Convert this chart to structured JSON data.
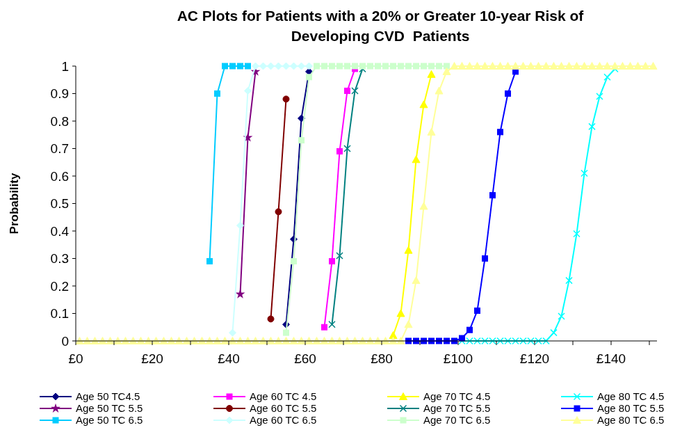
{
  "chart_data": {
    "type": "line",
    "title": "AC Plots for Patients with a 20% or Greater 10-year Risk of Developing CVD  Patients",
    "ylabel": "Probability",
    "x": [
      1,
      3,
      5,
      7,
      9,
      11,
      13,
      15,
      17,
      19,
      21,
      23,
      25,
      27,
      29,
      31,
      33,
      35,
      37,
      39,
      41,
      43,
      45,
      47,
      49,
      51,
      53,
      55,
      57,
      59,
      61,
      63,
      65,
      67,
      69,
      71,
      73,
      75,
      77,
      79,
      81,
      83,
      85,
      87,
      89,
      91,
      93,
      95,
      97,
      99,
      101,
      103,
      105,
      107,
      109,
      111,
      113,
      115,
      117,
      119,
      121,
      123,
      125,
      127,
      129,
      131,
      133,
      135,
      137,
      139,
      141,
      143,
      145,
      147,
      149,
      151
    ],
    "xlim": [
      0,
      152
    ],
    "xticks": [
      {
        "value": 0,
        "label": "£0"
      },
      {
        "value": 10,
        "label": null
      },
      {
        "value": 20,
        "label": "£20"
      },
      {
        "value": 30,
        "label": null
      },
      {
        "value": 40,
        "label": "£40"
      },
      {
        "value": 50,
        "label": null
      },
      {
        "value": 60,
        "label": "£60"
      },
      {
        "value": 70,
        "label": null
      },
      {
        "value": 80,
        "label": "£80"
      },
      {
        "value": 90,
        "label": null
      },
      {
        "value": 100,
        "label": "£100"
      },
      {
        "value": 110,
        "label": null
      },
      {
        "value": 120,
        "label": "£120"
      },
      {
        "value": 130,
        "label": null
      },
      {
        "value": 140,
        "label": "£140"
      },
      {
        "value": 150,
        "label": null
      }
    ],
    "ylim": [
      0,
      1
    ],
    "yticks": [
      0,
      0.1,
      0.2,
      0.3,
      0.4,
      0.5,
      0.6,
      0.7,
      0.8,
      0.9,
      1
    ],
    "grid": false,
    "legend": "bottom",
    "line_style": "solid",
    "series": [
      {
        "name": "Age 50 TC4.5",
        "color": "#000080",
        "marker": "diamond",
        "values": [
          null,
          null,
          null,
          null,
          null,
          null,
          null,
          null,
          null,
          null,
          null,
          null,
          null,
          null,
          null,
          null,
          null,
          null,
          null,
          null,
          null,
          null,
          null,
          null,
          null,
          null,
          null,
          0.06,
          0.37,
          0.81,
          0.98,
          null,
          null,
          null,
          null,
          null,
          null,
          null,
          null,
          null,
          null,
          null,
          null,
          null,
          null,
          null,
          null,
          null,
          null,
          null,
          null,
          null,
          null,
          null,
          null,
          null,
          null,
          null,
          null,
          null,
          null,
          null,
          null,
          null,
          null,
          null,
          null,
          null,
          null,
          null,
          null,
          null,
          null,
          null,
          null,
          null
        ]
      },
      {
        "name": "Age 50 TC 5.5",
        "color": "#800080",
        "marker": "star",
        "values": [
          null,
          null,
          null,
          null,
          null,
          null,
          null,
          null,
          null,
          null,
          null,
          null,
          null,
          null,
          null,
          null,
          null,
          null,
          null,
          null,
          null,
          0.17,
          0.74,
          0.98,
          null,
          null,
          null,
          null,
          null,
          null,
          null,
          null,
          null,
          null,
          null,
          null,
          null,
          null,
          null,
          null,
          null,
          null,
          null,
          null,
          null,
          null,
          null,
          null,
          null,
          null,
          null,
          null,
          null,
          null,
          null,
          null,
          null,
          null,
          null,
          null,
          null,
          null,
          null,
          null,
          null,
          null,
          null,
          null,
          null,
          null,
          null,
          null,
          null,
          null,
          null,
          null
        ]
      },
      {
        "name": "Age 50 TC 6.5",
        "color": "#00ccff",
        "marker": "square",
        "values": [
          null,
          null,
          null,
          null,
          null,
          null,
          null,
          null,
          null,
          null,
          null,
          null,
          null,
          null,
          null,
          null,
          null,
          0.29,
          0.9,
          1,
          1,
          1,
          1,
          null,
          null,
          null,
          null,
          null,
          null,
          null,
          null,
          null,
          null,
          null,
          null,
          null,
          null,
          null,
          null,
          null,
          null,
          null,
          null,
          null,
          null,
          null,
          null,
          null,
          null,
          null,
          null,
          null,
          null,
          null,
          null,
          null,
          null,
          null,
          null,
          null,
          null,
          null,
          null,
          null,
          null,
          null,
          null,
          null,
          null,
          null,
          null,
          null,
          null,
          null,
          null,
          null
        ]
      },
      {
        "name": "Age 60 TC 4.5",
        "color": "#ff00ff",
        "marker": "square",
        "values": [
          null,
          null,
          null,
          null,
          null,
          null,
          null,
          null,
          null,
          null,
          null,
          null,
          null,
          null,
          null,
          null,
          null,
          null,
          null,
          null,
          null,
          null,
          null,
          null,
          null,
          null,
          null,
          null,
          null,
          null,
          null,
          null,
          0.05,
          0.29,
          0.69,
          0.91,
          0.99,
          null,
          null,
          null,
          null,
          null,
          null,
          null,
          null,
          null,
          null,
          null,
          null,
          null,
          null,
          null,
          null,
          null,
          null,
          null,
          null,
          null,
          null,
          null,
          null,
          null,
          null,
          null,
          null,
          null,
          null,
          null,
          null,
          null,
          null,
          null,
          null,
          null,
          null,
          null
        ]
      },
      {
        "name": "Age 60 TC 5.5",
        "color": "#800000",
        "marker": "circle",
        "values": [
          null,
          null,
          null,
          null,
          null,
          null,
          null,
          null,
          null,
          null,
          null,
          null,
          null,
          null,
          null,
          null,
          null,
          null,
          null,
          null,
          null,
          null,
          null,
          null,
          null,
          0.08,
          0.47,
          0.88,
          null,
          null,
          null,
          null,
          null,
          null,
          null,
          null,
          null,
          null,
          null,
          null,
          null,
          null,
          null,
          null,
          null,
          null,
          null,
          null,
          null,
          null,
          null,
          null,
          null,
          null,
          null,
          null,
          null,
          null,
          null,
          null,
          null,
          null,
          null,
          null,
          null,
          null,
          null,
          null,
          null,
          null,
          null,
          null,
          null,
          null,
          null,
          null
        ]
      },
      {
        "name": "Age 60 TC 6.5",
        "color": "#ccffff",
        "marker": "diamond",
        "values": [
          null,
          null,
          null,
          null,
          null,
          null,
          null,
          null,
          null,
          null,
          null,
          null,
          null,
          null,
          null,
          null,
          null,
          null,
          null,
          null,
          0.03,
          0.42,
          0.91,
          1,
          1,
          1,
          1,
          1,
          1,
          1,
          1,
          null,
          null,
          null,
          null,
          null,
          null,
          null,
          null,
          null,
          null,
          null,
          null,
          null,
          null,
          null,
          null,
          null,
          null,
          null,
          null,
          null,
          null,
          null,
          null,
          null,
          null,
          null,
          null,
          null,
          null,
          null,
          null,
          null,
          null,
          null,
          null,
          null,
          null,
          null,
          null,
          null,
          null,
          null,
          null,
          null
        ]
      },
      {
        "name": "Age 70 TC 4.5",
        "color": "#ffff00",
        "marker": "triangle",
        "values": [
          null,
          null,
          null,
          null,
          null,
          null,
          null,
          null,
          null,
          null,
          null,
          null,
          null,
          null,
          null,
          null,
          null,
          null,
          null,
          null,
          null,
          null,
          null,
          null,
          null,
          null,
          null,
          null,
          null,
          null,
          null,
          null,
          null,
          null,
          null,
          null,
          null,
          null,
          null,
          null,
          null,
          0.02,
          0.1,
          0.33,
          0.66,
          0.86,
          0.97,
          null,
          null,
          null,
          null,
          null,
          null,
          null,
          null,
          null,
          null,
          null,
          null,
          null,
          null,
          null,
          null,
          null,
          null,
          null,
          null,
          null,
          null,
          null,
          null,
          null,
          null,
          null,
          null,
          null
        ]
      },
      {
        "name": "Age 70 TC 5.5",
        "color": "#008080",
        "marker": "cross",
        "values": [
          null,
          null,
          null,
          null,
          null,
          null,
          null,
          null,
          null,
          null,
          null,
          null,
          null,
          null,
          null,
          null,
          null,
          null,
          null,
          null,
          null,
          null,
          null,
          null,
          null,
          null,
          null,
          null,
          null,
          null,
          null,
          null,
          null,
          0.06,
          0.31,
          0.7,
          0.91,
          0.99,
          null,
          null,
          null,
          null,
          null,
          null,
          null,
          null,
          null,
          null,
          null,
          null,
          null,
          null,
          null,
          null,
          null,
          null,
          null,
          null,
          null,
          null,
          null,
          null,
          null,
          null,
          null,
          null,
          null,
          null,
          null,
          null,
          null,
          null,
          null,
          null,
          null,
          null
        ]
      },
      {
        "name": "Age 70 TC 6.5",
        "color": "#ccffcc",
        "marker": "square",
        "values": [
          null,
          null,
          null,
          null,
          null,
          null,
          null,
          null,
          null,
          null,
          null,
          null,
          null,
          null,
          null,
          null,
          null,
          null,
          null,
          null,
          null,
          null,
          null,
          null,
          null,
          null,
          null,
          0.03,
          0.29,
          0.73,
          0.96,
          1,
          1,
          1,
          1,
          1,
          1,
          1,
          1,
          1,
          1,
          1,
          1,
          1,
          1,
          1,
          1,
          1,
          1,
          null,
          null,
          null,
          null,
          null,
          null,
          null,
          null,
          null,
          null,
          null,
          null,
          null,
          null,
          null,
          null,
          null,
          null,
          null,
          null,
          null,
          null,
          null,
          null,
          null,
          null,
          null
        ]
      },
      {
        "name": "Age 80 TC 4.5",
        "color": "#00ffff",
        "marker": "cross",
        "values": [
          null,
          null,
          null,
          null,
          null,
          null,
          null,
          null,
          null,
          null,
          null,
          null,
          null,
          null,
          null,
          null,
          null,
          null,
          null,
          null,
          null,
          null,
          null,
          null,
          null,
          null,
          null,
          null,
          null,
          null,
          null,
          null,
          null,
          null,
          null,
          null,
          null,
          null,
          null,
          null,
          null,
          null,
          null,
          null,
          null,
          null,
          null,
          null,
          null,
          null,
          0,
          0,
          0,
          0,
          0,
          0,
          0,
          0,
          0,
          0,
          0,
          0,
          0.03,
          0.09,
          0.22,
          0.39,
          0.61,
          0.78,
          0.89,
          0.96,
          0.99,
          null,
          null,
          null,
          null,
          null
        ]
      },
      {
        "name": "Age 80 TC 5.5",
        "color": "#0000ff",
        "marker": "square",
        "values": [
          null,
          null,
          null,
          null,
          null,
          null,
          null,
          null,
          null,
          null,
          null,
          null,
          null,
          null,
          null,
          null,
          null,
          null,
          null,
          null,
          null,
          null,
          null,
          null,
          null,
          null,
          null,
          null,
          null,
          null,
          null,
          null,
          null,
          null,
          null,
          null,
          null,
          null,
          null,
          null,
          null,
          null,
          null,
          0,
          0,
          0,
          0,
          0,
          0,
          0,
          0.01,
          0.04,
          0.11,
          0.3,
          0.53,
          0.76,
          0.9,
          0.98,
          null,
          null,
          null,
          null,
          null,
          null,
          null,
          null,
          null,
          null,
          null,
          null,
          null,
          null,
          null,
          null,
          null,
          null
        ]
      },
      {
        "name": "Age 80 TC 6.5",
        "color": "#ffff99",
        "marker": "triangle",
        "values": [
          0,
          0,
          0,
          0,
          0,
          0,
          0,
          0,
          0,
          0,
          0,
          0,
          0,
          0,
          0,
          0,
          0,
          0,
          0,
          0,
          0,
          0,
          0,
          0,
          0,
          0,
          0,
          0,
          0,
          0,
          0,
          0,
          0,
          0,
          0,
          0,
          0,
          0,
          0,
          0,
          0,
          0,
          0,
          0.06,
          0.22,
          0.49,
          0.76,
          0.91,
          0.98,
          1,
          1,
          1,
          1,
          1,
          1,
          1,
          1,
          1,
          1,
          1,
          1,
          1,
          1,
          1,
          1,
          1,
          1,
          1,
          1,
          1,
          1,
          1,
          1,
          1,
          1,
          1
        ]
      }
    ]
  }
}
